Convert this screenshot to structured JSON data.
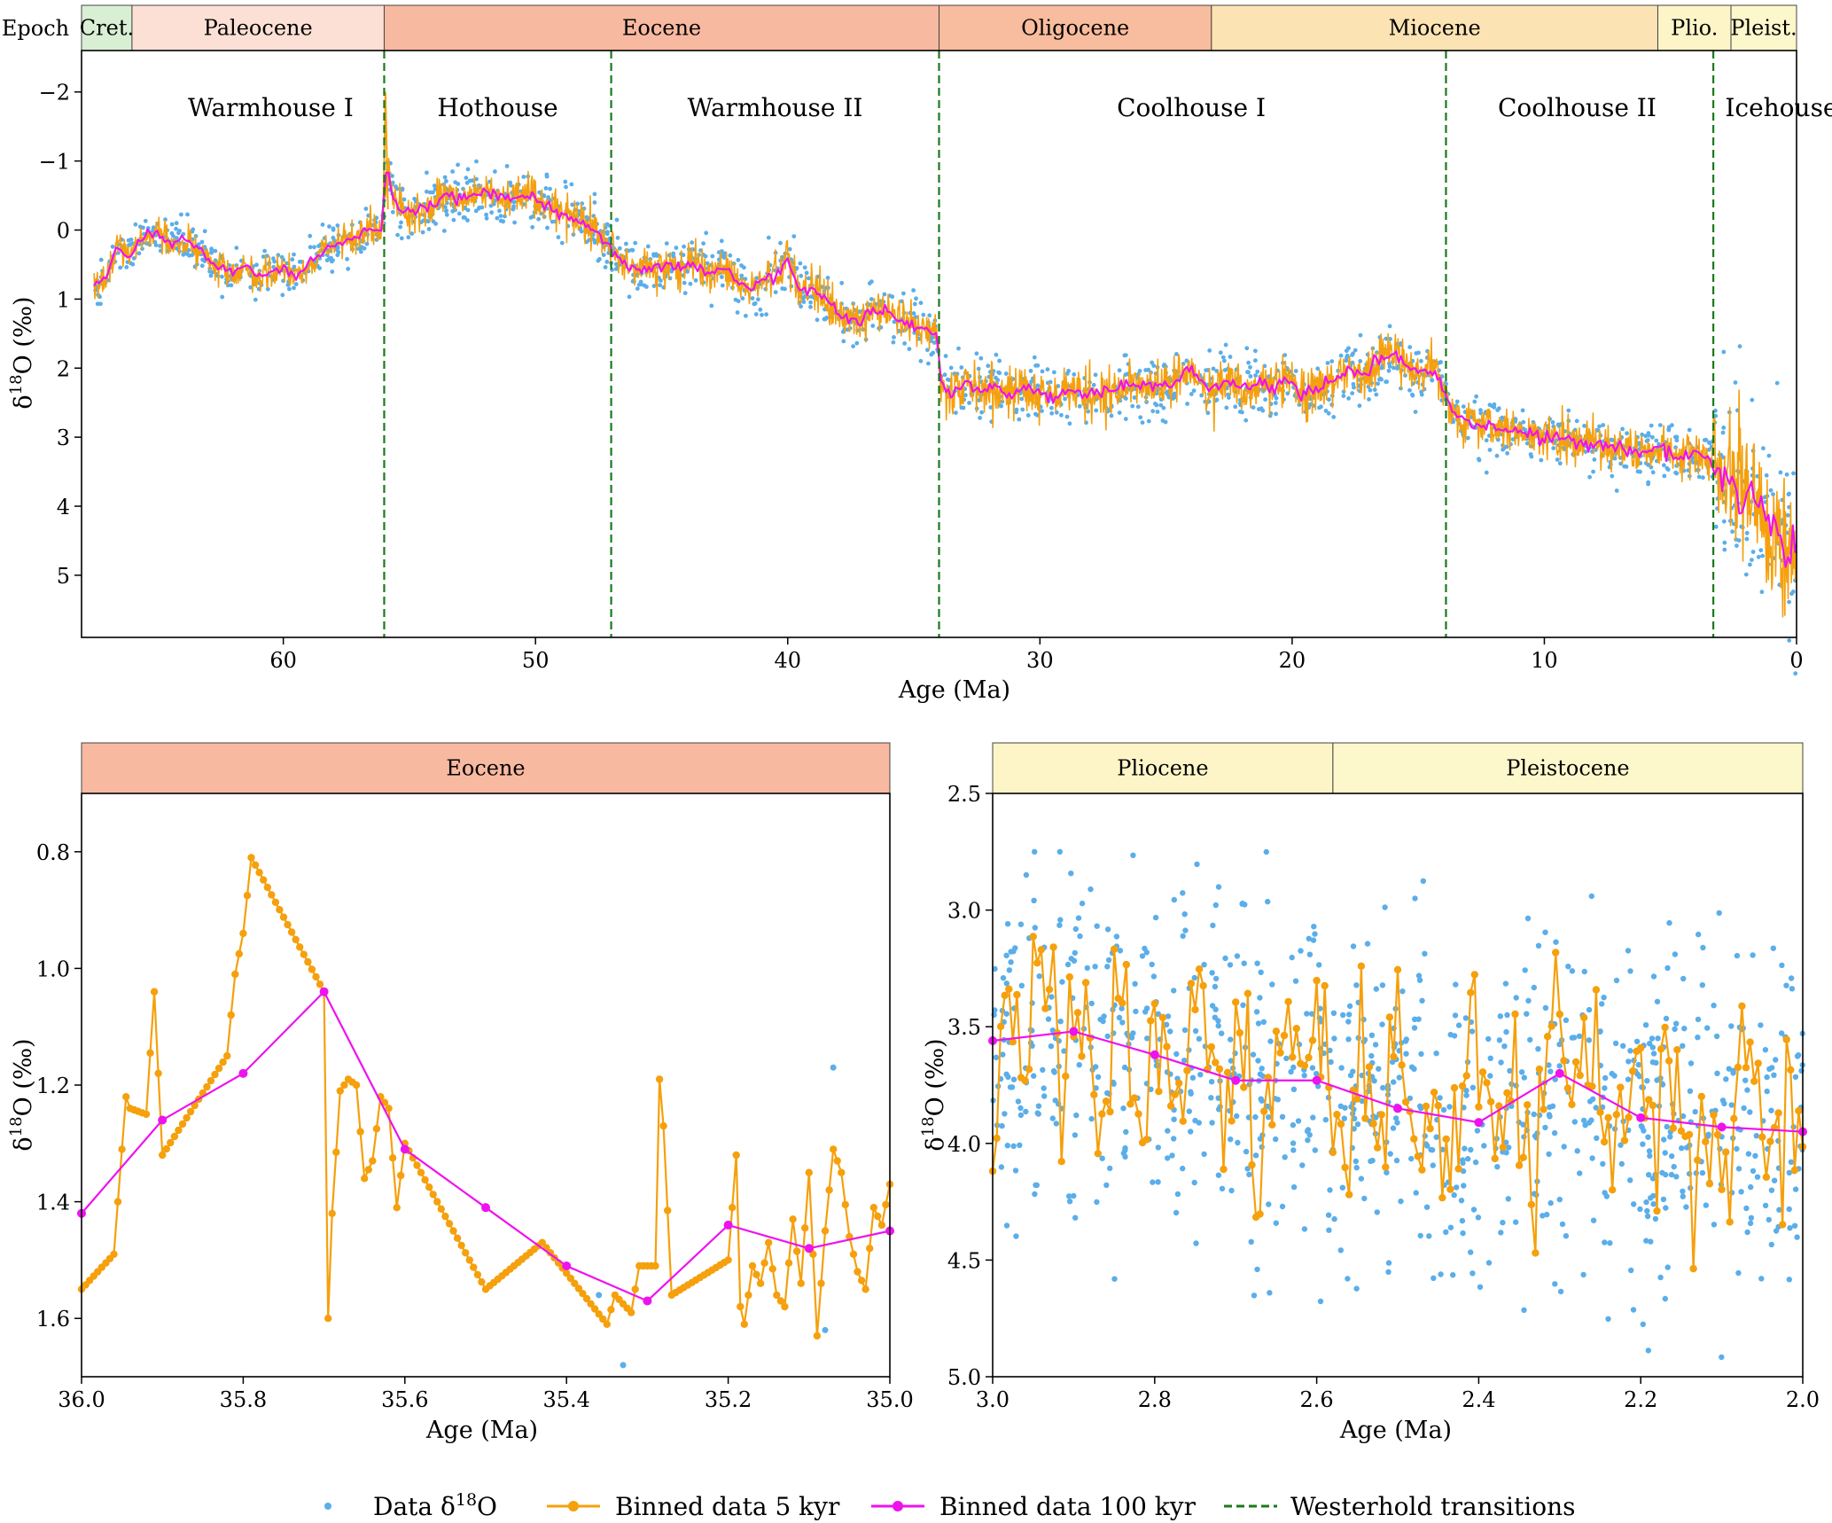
{
  "colors": {
    "data": "#5aaeea",
    "bin5": "#f5a00c",
    "bin100": "#ee12ee",
    "transition": "#1a7a1a",
    "epochs": {
      "Cretaceous": "#d9efd4",
      "Paleocene": "#fde0d5",
      "Eocene": "#f8b9a1",
      "Oligocene": "#f8bc9e",
      "Miocene": "#fce3b4",
      "Pliocene": "#fdf5c8",
      "Pleistocene": "#fdf7cc"
    }
  },
  "legend": [
    {
      "key": "data",
      "label": "Data δ18O",
      "base": "Data δ",
      "sup": "18",
      "tail": "O",
      "style": "dot"
    },
    {
      "key": "bin5",
      "label": "Binned data 5 kyr",
      "style": "line-dot"
    },
    {
      "key": "bin100",
      "label": "Binned data 100 kyr",
      "style": "line-dot"
    },
    {
      "key": "transition",
      "label": "Westerhold transitions",
      "style": "dashed"
    }
  ],
  "chart_data": [
    {
      "id": "top",
      "type": "scatter",
      "xlabel": "Age (Ma)",
      "ylabel": "δ18O (‰)",
      "ylabel_parts": {
        "base": "δ",
        "sup": "18",
        "tail": "O (‰)"
      },
      "xlim": [
        68,
        0
      ],
      "ylim": [
        5.9,
        -2.6
      ],
      "y_inverted": true,
      "xticks": [
        60,
        50,
        40,
        30,
        20,
        10,
        0
      ],
      "yticks": [
        -2,
        -1,
        0,
        1,
        2,
        3,
        4,
        5
      ],
      "ytick_labels": [
        "−2",
        "−1",
        "0",
        "1",
        "2",
        "3",
        "4",
        "5"
      ],
      "epoch_row_label": "Epoch",
      "epochs": [
        {
          "name": "Cret.",
          "key": "Cretaceous",
          "start": 68,
          "end": 66
        },
        {
          "name": "Paleocene",
          "key": "Paleocene",
          "start": 66,
          "end": 56
        },
        {
          "name": "Eocene",
          "key": "Eocene",
          "start": 56,
          "end": 34
        },
        {
          "name": "Oligocene",
          "key": "Oligocene",
          "start": 34,
          "end": 23.2
        },
        {
          "name": "Miocene",
          "key": "Miocene",
          "start": 23.2,
          "end": 5.5
        },
        {
          "name": "Plio.",
          "key": "Pliocene",
          "start": 5.5,
          "end": 2.6
        },
        {
          "name": "Pleist.",
          "key": "Pleistocene",
          "start": 2.6,
          "end": 0
        }
      ],
      "regimes": [
        {
          "name": "Warmhouse I",
          "x": 60.5
        },
        {
          "name": "Hothouse",
          "x": 51.5
        },
        {
          "name": "Warmhouse II",
          "x": 40.5
        },
        {
          "name": "Coolhouse I",
          "x": 24
        },
        {
          "name": "Coolhouse II",
          "x": 8.7
        },
        {
          "name": "Icehouse",
          "x": 0.6
        }
      ],
      "transitions": [
        56,
        47,
        34,
        13.9,
        3.3
      ],
      "trend_100kyr": {
        "x": [
          67.5,
          67,
          66.6,
          66.1,
          65.6,
          65,
          64.5,
          64,
          63.3,
          62.7,
          62,
          61.5,
          61,
          60.6,
          60,
          59.5,
          59,
          58.4,
          57.8,
          57.1,
          56.5,
          56.1,
          55.9,
          55.6,
          55,
          54.5,
          54,
          53.4,
          52.8,
          52.2,
          51.7,
          51.1,
          50.5,
          50,
          49.5,
          49,
          48.5,
          48,
          47.4,
          47,
          46.5,
          46,
          45.4,
          44.8,
          44.2,
          43.7,
          43.1,
          42.5,
          42,
          41.5,
          40.9,
          40.3,
          40,
          39.6,
          39,
          38.5,
          38,
          37.5,
          37.1,
          36.7,
          36.4,
          36,
          35.6,
          35.2,
          34.8,
          34.4,
          34.1,
          33.9,
          33.6,
          33,
          32.4,
          31.8,
          31.2,
          30.6,
          30,
          29.4,
          28.8,
          28.2,
          27.6,
          27,
          26.4,
          25.8,
          25.2,
          24.6,
          24,
          23.4,
          23,
          22.6,
          22,
          21.4,
          20.8,
          20.2,
          19.6,
          19,
          18.4,
          17.8,
          17.2,
          16.6,
          16,
          15.4,
          14.8,
          14.3,
          14,
          13.6,
          13,
          12.4,
          11.8,
          11.2,
          10.6,
          10,
          9.4,
          8.8,
          8.2,
          7.6,
          7,
          6.4,
          5.8,
          5.2,
          4.6,
          4,
          3.5,
          3.2,
          2.9,
          2.6,
          2.2,
          1.8,
          1.4,
          1,
          0.6,
          0.3,
          0.05
        ],
        "y": [
          0.8,
          0.7,
          0.2,
          0.4,
          0.1,
          0.05,
          0.2,
          0.1,
          0.3,
          0.5,
          0.6,
          0.5,
          0.7,
          0.6,
          0.55,
          0.7,
          0.5,
          0.3,
          0.2,
          0.1,
          0.0,
          0.0,
          -0.95,
          -0.4,
          -0.2,
          -0.3,
          -0.35,
          -0.5,
          -0.45,
          -0.55,
          -0.5,
          -0.45,
          -0.5,
          -0.45,
          -0.35,
          -0.25,
          -0.2,
          -0.05,
          0.1,
          0.25,
          0.5,
          0.55,
          0.6,
          0.5,
          0.55,
          0.5,
          0.65,
          0.5,
          0.75,
          0.85,
          0.7,
          0.6,
          0.4,
          0.8,
          0.9,
          1.0,
          1.2,
          1.3,
          1.35,
          1.1,
          1.2,
          1.15,
          1.3,
          1.35,
          1.4,
          1.45,
          1.5,
          2.2,
          2.4,
          2.2,
          2.3,
          2.25,
          2.4,
          2.3,
          2.35,
          2.4,
          2.3,
          2.4,
          2.35,
          2.3,
          2.2,
          2.3,
          2.25,
          2.2,
          2.0,
          2.3,
          2.3,
          2.1,
          2.3,
          2.2,
          2.3,
          2.1,
          2.4,
          2.3,
          2.2,
          2.05,
          2.1,
          1.9,
          1.8,
          2.0,
          2.05,
          2.1,
          2.3,
          2.7,
          2.8,
          2.85,
          2.9,
          2.9,
          2.95,
          3.0,
          3.0,
          3.05,
          3.1,
          3.1,
          3.15,
          3.2,
          3.2,
          3.2,
          3.25,
          3.25,
          3.3,
          3.4,
          3.55,
          3.7,
          3.8,
          3.9,
          4.1,
          4.3,
          4.5,
          4.6,
          4.7
        ]
      }
    },
    {
      "id": "left",
      "type": "line",
      "xlabel": "Age (Ma)",
      "ylabel": "δ18O (‰)",
      "ylabel_parts": {
        "base": "δ",
        "sup": "18",
        "tail": "O (‰)"
      },
      "xlim": [
        36.0,
        35.0
      ],
      "ylim": [
        1.7,
        0.7
      ],
      "y_inverted": true,
      "xticks": [
        36.0,
        35.8,
        35.6,
        35.4,
        35.2,
        35.0
      ],
      "xtick_labels": [
        "36.0",
        "35.8",
        "35.6",
        "35.4",
        "35.2",
        "35.0"
      ],
      "yticks": [
        0.8,
        1.0,
        1.2,
        1.4,
        1.6
      ],
      "ytick_labels": [
        "0.8",
        "1.0",
        "1.2",
        "1.4",
        "1.6"
      ],
      "epochs": [
        {
          "name": "Eocene",
          "key": "Eocene",
          "start": 36.0,
          "end": 35.0
        }
      ],
      "bin100": {
        "x": [
          36.0,
          35.9,
          35.8,
          35.7,
          35.6,
          35.5,
          35.4,
          35.3,
          35.2,
          35.1,
          35.0
        ],
        "y": [
          1.42,
          1.26,
          1.18,
          1.04,
          1.31,
          1.41,
          1.51,
          1.57,
          1.44,
          1.48,
          1.45
        ]
      },
      "bin5_anchors": {
        "x": [
          36.0,
          35.96,
          35.945,
          35.94,
          35.92,
          35.91,
          35.9,
          35.82,
          35.81,
          35.8,
          35.79,
          35.7,
          35.695,
          35.69,
          35.68,
          35.67,
          35.66,
          35.65,
          35.64,
          35.63,
          35.62,
          35.61,
          35.6,
          35.5,
          35.43,
          35.35,
          35.34,
          35.32,
          35.31,
          35.29,
          35.285,
          35.28,
          35.27,
          35.2,
          35.19,
          35.185,
          35.18,
          35.17,
          35.16,
          35.15,
          35.14,
          35.13,
          35.12,
          35.11,
          35.1,
          35.09,
          35.08,
          35.07,
          35.06,
          35.05,
          35.04,
          35.03,
          35.02,
          35.01,
          35.0
        ],
        "y": [
          1.55,
          1.49,
          1.22,
          1.24,
          1.25,
          1.04,
          1.32,
          1.15,
          1.01,
          0.94,
          0.81,
          1.04,
          1.6,
          1.42,
          1.21,
          1.19,
          1.2,
          1.36,
          1.33,
          1.22,
          1.24,
          1.41,
          1.3,
          1.55,
          1.47,
          1.61,
          1.56,
          1.59,
          1.51,
          1.51,
          1.19,
          1.27,
          1.56,
          1.5,
          1.32,
          1.58,
          1.61,
          1.51,
          1.54,
          1.47,
          1.56,
          1.58,
          1.43,
          1.54,
          1.35,
          1.63,
          1.45,
          1.31,
          1.35,
          1.46,
          1.52,
          1.55,
          1.41,
          1.44,
          1.37
        ]
      },
      "data_extra": {
        "x": [
          35.33,
          35.07,
          35.36,
          35.08
        ],
        "y": [
          1.68,
          1.17,
          1.56,
          1.62
        ]
      }
    },
    {
      "id": "right",
      "type": "scatter",
      "xlabel": "Age (Ma)",
      "ylabel": "δ18O (‰)",
      "ylabel_parts": {
        "base": "δ",
        "sup": "18",
        "tail": "O (‰)"
      },
      "xlim": [
        3.0,
        2.0
      ],
      "ylim": [
        5.0,
        2.5
      ],
      "y_inverted": true,
      "xticks": [
        3.0,
        2.8,
        2.6,
        2.4,
        2.2,
        2.0
      ],
      "xtick_labels": [
        "3.0",
        "2.8",
        "2.6",
        "2.4",
        "2.2",
        "2.0"
      ],
      "yticks": [
        2.5,
        3.0,
        3.5,
        4.0,
        4.5,
        5.0
      ],
      "ytick_labels": [
        "2.5",
        "3.0",
        "3.5",
        "4.0",
        "4.5",
        "5.0"
      ],
      "epochs": [
        {
          "name": "Pliocene",
          "key": "Pliocene",
          "start": 3.0,
          "end": 2.58
        },
        {
          "name": "Pleistocene",
          "key": "Pleistocene",
          "start": 2.58,
          "end": 2.0
        }
      ],
      "bin100": {
        "x": [
          3.0,
          2.9,
          2.8,
          2.7,
          2.6,
          2.5,
          2.4,
          2.3,
          2.2,
          2.1,
          2.0
        ],
        "y": [
          3.56,
          3.52,
          3.62,
          3.73,
          3.73,
          3.85,
          3.91,
          3.7,
          3.89,
          3.93,
          3.95
        ]
      }
    }
  ]
}
